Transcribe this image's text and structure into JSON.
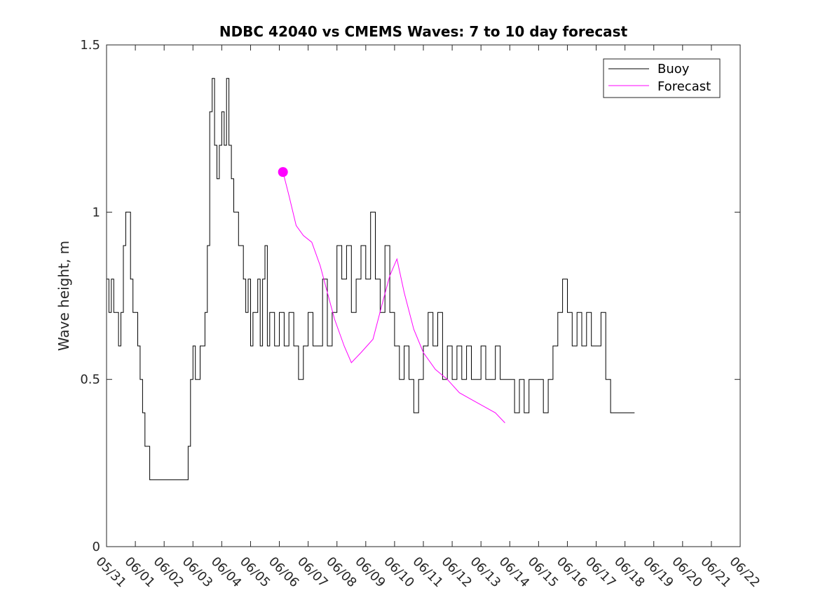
{
  "chart_data": {
    "type": "line",
    "title": "NDBC 42040 vs CMEMS Waves: 7 to 10 day forecast",
    "xlabel": "",
    "ylabel": "Wave height, m",
    "xlim": [
      "05/31",
      "06/22"
    ],
    "ylim": [
      0,
      1.5
    ],
    "x_tick_labels": [
      "05/31",
      "06/01",
      "06/02",
      "06/03",
      "06/04",
      "06/05",
      "06/06",
      "06/07",
      "06/08",
      "06/09",
      "06/10",
      "06/11",
      "06/12",
      "06/13",
      "06/14",
      "06/15",
      "06/16",
      "06/17",
      "06/18",
      "06/19",
      "06/20",
      "06/21",
      "06/22"
    ],
    "y_ticks": [
      0,
      0.5,
      1,
      1.5
    ],
    "y_tick_labels": [
      "0",
      "0.5",
      "1",
      "1.5"
    ],
    "grid": false,
    "legend": {
      "placement": "top-right",
      "entries": [
        "Buoy",
        "Forecast"
      ]
    },
    "colors": {
      "buoy": "#000000",
      "forecast": "#ff00ff"
    },
    "series": [
      {
        "name": "Buoy",
        "color": "#000000",
        "points": [
          [
            "05/31 00:00",
            0.8
          ],
          [
            "05/31 02:00",
            0.7
          ],
          [
            "05/31 04:00",
            0.8
          ],
          [
            "05/31 06:00",
            0.7
          ],
          [
            "05/31 08:00",
            0.7
          ],
          [
            "05/31 10:00",
            0.6
          ],
          [
            "05/31 12:00",
            0.7
          ],
          [
            "05/31 14:00",
            0.9
          ],
          [
            "05/31 16:00",
            1.0
          ],
          [
            "05/31 18:00",
            1.0
          ],
          [
            "05/31 20:00",
            0.8
          ],
          [
            "05/31 22:00",
            0.7
          ],
          [
            "06/01 00:00",
            0.7
          ],
          [
            "06/01 02:00",
            0.6
          ],
          [
            "06/01 04:00",
            0.5
          ],
          [
            "06/01 06:00",
            0.4
          ],
          [
            "06/01 08:00",
            0.3
          ],
          [
            "06/01 12:00",
            0.2
          ],
          [
            "06/02 18:00",
            0.2
          ],
          [
            "06/02 20:00",
            0.3
          ],
          [
            "06/02 22:00",
            0.5
          ],
          [
            "06/03 00:00",
            0.6
          ],
          [
            "06/03 02:00",
            0.5
          ],
          [
            "06/03 04:00",
            0.5
          ],
          [
            "06/03 06:00",
            0.6
          ],
          [
            "06/03 10:00",
            0.7
          ],
          [
            "06/03 12:00",
            0.9
          ],
          [
            "06/03 14:00",
            1.3
          ],
          [
            "06/03 16:00",
            1.4
          ],
          [
            "06/03 18:00",
            1.2
          ],
          [
            "06/03 20:00",
            1.1
          ],
          [
            "06/03 22:00",
            1.2
          ],
          [
            "06/04 00:00",
            1.3
          ],
          [
            "06/04 02:00",
            1.2
          ],
          [
            "06/04 04:00",
            1.4
          ],
          [
            "06/04 06:00",
            1.2
          ],
          [
            "06/04 08:00",
            1.1
          ],
          [
            "06/04 10:00",
            1.0
          ],
          [
            "06/04 12:00",
            1.0
          ],
          [
            "06/04 14:00",
            0.9
          ],
          [
            "06/04 16:00",
            0.9
          ],
          [
            "06/04 18:00",
            0.8
          ],
          [
            "06/04 20:00",
            0.7
          ],
          [
            "06/04 22:00",
            0.8
          ],
          [
            "06/05 00:00",
            0.6
          ],
          [
            "06/05 02:00",
            0.7
          ],
          [
            "06/05 04:00",
            0.7
          ],
          [
            "06/05 06:00",
            0.8
          ],
          [
            "06/05 08:00",
            0.6
          ],
          [
            "06/05 10:00",
            0.8
          ],
          [
            "06/05 12:00",
            0.9
          ],
          [
            "06/05 14:00",
            0.6
          ],
          [
            "06/05 16:00",
            0.7
          ],
          [
            "06/05 18:00",
            0.7
          ],
          [
            "06/05 20:00",
            0.6
          ],
          [
            "06/06 00:00",
            0.7
          ],
          [
            "06/06 04:00",
            0.6
          ],
          [
            "06/06 08:00",
            0.7
          ],
          [
            "06/06 12:00",
            0.6
          ],
          [
            "06/06 16:00",
            0.5
          ],
          [
            "06/06 20:00",
            0.6
          ],
          [
            "06/07 00:00",
            0.7
          ],
          [
            "06/07 04:00",
            0.6
          ],
          [
            "06/07 08:00",
            0.6
          ],
          [
            "06/07 12:00",
            0.8
          ],
          [
            "06/07 16:00",
            0.6
          ],
          [
            "06/07 20:00",
            0.7
          ],
          [
            "06/08 00:00",
            0.9
          ],
          [
            "06/08 04:00",
            0.8
          ],
          [
            "06/08 08:00",
            0.9
          ],
          [
            "06/08 12:00",
            0.7
          ],
          [
            "06/08 16:00",
            0.8
          ],
          [
            "06/08 20:00",
            0.9
          ],
          [
            "06/09 00:00",
            0.8
          ],
          [
            "06/09 04:00",
            1.0
          ],
          [
            "06/09 08:00",
            0.8
          ],
          [
            "06/09 12:00",
            0.7
          ],
          [
            "06/09 16:00",
            0.9
          ],
          [
            "06/09 20:00",
            0.7
          ],
          [
            "06/10 00:00",
            0.6
          ],
          [
            "06/10 04:00",
            0.5
          ],
          [
            "06/10 08:00",
            0.6
          ],
          [
            "06/10 12:00",
            0.5
          ],
          [
            "06/10 16:00",
            0.4
          ],
          [
            "06/10 20:00",
            0.5
          ],
          [
            "06/11 00:00",
            0.6
          ],
          [
            "06/11 04:00",
            0.7
          ],
          [
            "06/11 08:00",
            0.6
          ],
          [
            "06/11 12:00",
            0.7
          ],
          [
            "06/11 16:00",
            0.5
          ],
          [
            "06/11 20:00",
            0.6
          ],
          [
            "06/12 00:00",
            0.5
          ],
          [
            "06/12 04:00",
            0.6
          ],
          [
            "06/12 08:00",
            0.5
          ],
          [
            "06/12 12:00",
            0.6
          ],
          [
            "06/12 16:00",
            0.5
          ],
          [
            "06/12 20:00",
            0.5
          ],
          [
            "06/13 00:00",
            0.6
          ],
          [
            "06/13 04:00",
            0.5
          ],
          [
            "06/13 08:00",
            0.5
          ],
          [
            "06/13 12:00",
            0.6
          ],
          [
            "06/13 16:00",
            0.5
          ],
          [
            "06/13 20:00",
            0.5
          ],
          [
            "06/14 00:00",
            0.5
          ],
          [
            "06/14 04:00",
            0.4
          ],
          [
            "06/14 08:00",
            0.5
          ],
          [
            "06/14 12:00",
            0.4
          ],
          [
            "06/14 16:00",
            0.5
          ],
          [
            "06/14 20:00",
            0.5
          ],
          [
            "06/15 00:00",
            0.5
          ],
          [
            "06/15 04:00",
            0.4
          ],
          [
            "06/15 08:00",
            0.5
          ],
          [
            "06/15 12:00",
            0.6
          ],
          [
            "06/15 16:00",
            0.7
          ],
          [
            "06/15 20:00",
            0.8
          ],
          [
            "06/16 00:00",
            0.7
          ],
          [
            "06/16 04:00",
            0.6
          ],
          [
            "06/16 08:00",
            0.7
          ],
          [
            "06/16 12:00",
            0.6
          ],
          [
            "06/16 16:00",
            0.7
          ],
          [
            "06/16 20:00",
            0.6
          ],
          [
            "06/17 00:00",
            0.6
          ],
          [
            "06/17 04:00",
            0.7
          ],
          [
            "06/17 08:00",
            0.5
          ],
          [
            "06/17 12:00",
            0.4
          ],
          [
            "06/17 16:00",
            0.4
          ],
          [
            "06/17 20:00",
            0.4
          ],
          [
            "06/18 00:00",
            0.4
          ],
          [
            "06/18 04:00",
            0.4
          ],
          [
            "06/18 08:00",
            0.4
          ]
        ]
      },
      {
        "name": "Forecast",
        "color": "#ff00ff",
        "points": [
          [
            "06/06 03:00",
            1.12
          ],
          [
            "06/06 08:00",
            1.05
          ],
          [
            "06/06 14:00",
            0.96
          ],
          [
            "06/06 20:00",
            0.93
          ],
          [
            "06/07 03:00",
            0.91
          ],
          [
            "06/07 10:00",
            0.84
          ],
          [
            "06/07 16:00",
            0.76
          ],
          [
            "06/07 22:00",
            0.68
          ],
          [
            "06/08 06:00",
            0.6
          ],
          [
            "06/08 12:00",
            0.55
          ],
          [
            "06/08 20:00",
            0.58
          ],
          [
            "06/09 06:00",
            0.62
          ],
          [
            "06/09 14:00",
            0.73
          ],
          [
            "06/09 20:00",
            0.81
          ],
          [
            "06/10 02:00",
            0.86
          ],
          [
            "06/10 08:00",
            0.76
          ],
          [
            "06/10 16:00",
            0.65
          ],
          [
            "06/11 00:00",
            0.58
          ],
          [
            "06/11 10:00",
            0.53
          ],
          [
            "06/11 20:00",
            0.5
          ],
          [
            "06/12 06:00",
            0.46
          ],
          [
            "06/12 16:00",
            0.44
          ],
          [
            "06/13 02:00",
            0.42
          ],
          [
            "06/13 12:00",
            0.4
          ],
          [
            "06/13 20:00",
            0.37
          ]
        ]
      }
    ]
  }
}
